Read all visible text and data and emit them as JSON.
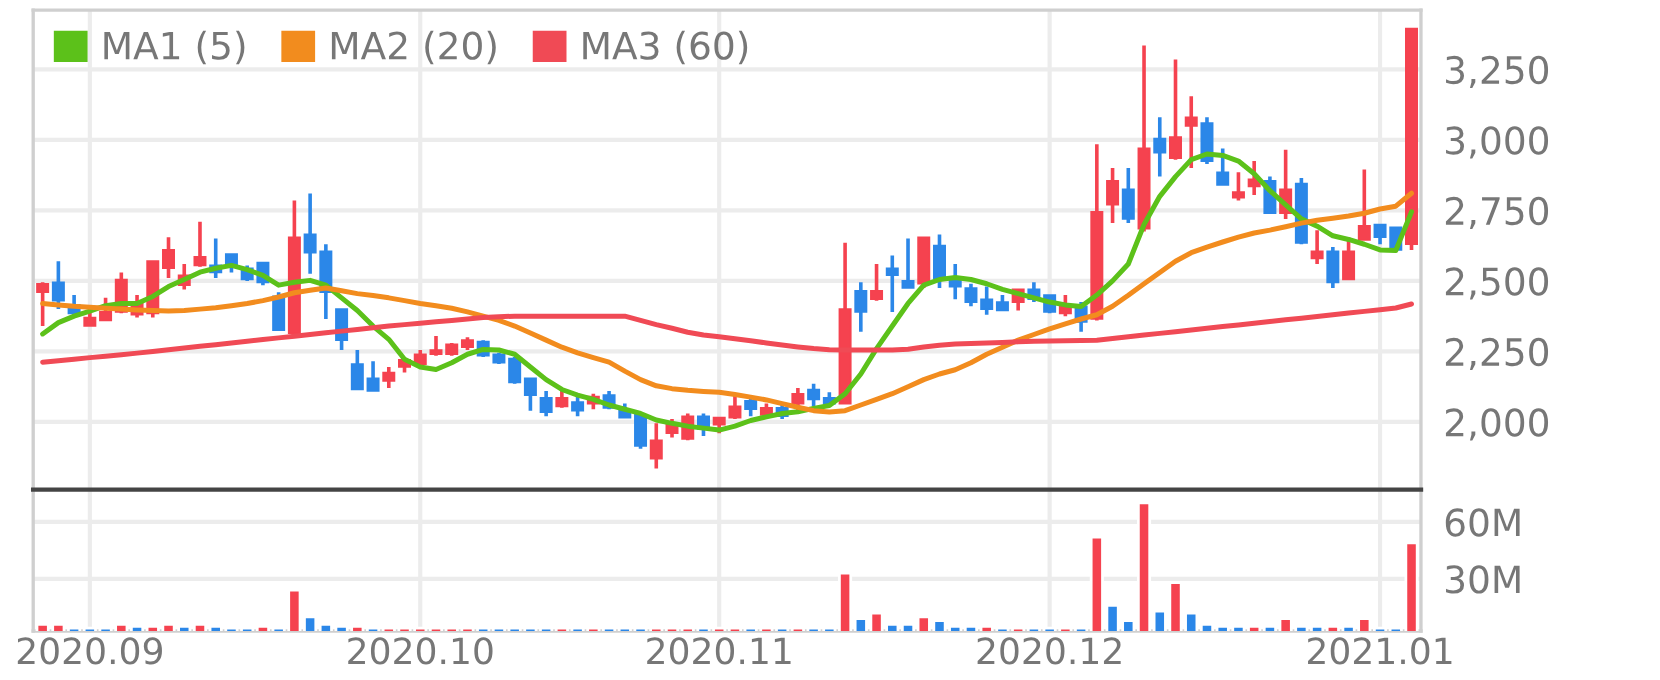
{
  "chart_data": [
    {
      "type": "candlestick",
      "categories": [
        null,
        null,
        null,
        "2020.09",
        null,
        null,
        null,
        null,
        null,
        null,
        null,
        null,
        null,
        null,
        null,
        null,
        null,
        null,
        null,
        null,
        null,
        null,
        null,
        null,
        "2020.10",
        null,
        null,
        null,
        null,
        null,
        null,
        null,
        null,
        null,
        null,
        null,
        null,
        null,
        null,
        null,
        null,
        null,
        null,
        "2020.11",
        null,
        null,
        null,
        null,
        null,
        null,
        null,
        null,
        null,
        null,
        null,
        null,
        null,
        null,
        null,
        null,
        null,
        null,
        null,
        null,
        "2020.12",
        null,
        null,
        null,
        null,
        null,
        null,
        null,
        null,
        null,
        null,
        null,
        null,
        null,
        null,
        null,
        null,
        null,
        null,
        null,
        null,
        "2021.01",
        null,
        null
      ],
      "ohlc": [
        [
          2460,
          2495,
          2340,
          2490
        ],
        [
          2495,
          2570,
          2400,
          2430
        ],
        [
          2415,
          2450,
          2370,
          2385
        ],
        [
          2340,
          2400,
          2340,
          2370
        ],
        [
          2360,
          2440,
          2360,
          2390
        ],
        [
          2390,
          2530,
          2385,
          2505
        ],
        [
          2380,
          2450,
          2370,
          2425
        ],
        [
          2385,
          2570,
          2370,
          2570
        ],
        [
          2545,
          2655,
          2510,
          2610
        ],
        [
          2485,
          2560,
          2470,
          2520
        ],
        [
          2555,
          2710,
          2550,
          2585
        ],
        [
          2555,
          2650,
          2510,
          2530
        ],
        [
          2595,
          2595,
          2530,
          2550
        ],
        [
          2545,
          2555,
          2500,
          2505
        ],
        [
          2565,
          2565,
          2485,
          2495
        ],
        [
          2445,
          2460,
          2325,
          2325
        ],
        [
          2315,
          2785,
          2310,
          2655
        ],
        [
          2665,
          2810,
          2525,
          2600
        ],
        [
          2605,
          2630,
          2365,
          2460
        ],
        [
          2400,
          2400,
          2255,
          2290
        ],
        [
          2205,
          2255,
          2115,
          2115
        ],
        [
          2155,
          2215,
          2110,
          2110
        ],
        [
          2145,
          2195,
          2120,
          2175
        ],
        [
          2195,
          2225,
          2175,
          2220
        ],
        [
          2205,
          2255,
          2195,
          2240
        ],
        [
          2240,
          2305,
          2235,
          2255
        ],
        [
          2240,
          2280,
          2235,
          2275
        ],
        [
          2265,
          2300,
          2255,
          2290
        ],
        [
          2285,
          2290,
          2230,
          2235
        ],
        [
          2240,
          2245,
          2205,
          2210
        ],
        [
          2225,
          2230,
          2135,
          2140
        ],
        [
          2155,
          2155,
          2040,
          2095
        ],
        [
          2085,
          2110,
          2020,
          2035
        ],
        [
          2055,
          2120,
          2050,
          2085
        ],
        [
          2070,
          2090,
          2020,
          2040
        ],
        [
          2065,
          2100,
          2045,
          2090
        ],
        [
          2095,
          2110,
          2045,
          2050
        ],
        [
          2040,
          2065,
          2015,
          2015
        ],
        [
          2025,
          2025,
          1905,
          1915
        ],
        [
          1870,
          1995,
          1835,
          1935
        ],
        [
          1960,
          2010,
          1945,
          1995
        ],
        [
          1940,
          2030,
          1935,
          2020
        ],
        [
          2020,
          2030,
          1950,
          1975
        ],
        [
          1990,
          2015,
          1960,
          2015
        ],
        [
          2015,
          2100,
          2010,
          2055
        ],
        [
          2075,
          2090,
          2020,
          2045
        ],
        [
          2025,
          2065,
          2020,
          2050
        ],
        [
          2050,
          2065,
          2010,
          2020
        ],
        [
          2065,
          2120,
          2040,
          2100
        ],
        [
          2115,
          2135,
          2055,
          2080
        ],
        [
          2085,
          2105,
          2060,
          2065
        ],
        [
          2065,
          2635,
          2065,
          2400
        ],
        [
          2465,
          2495,
          2320,
          2390
        ],
        [
          2435,
          2560,
          2430,
          2465
        ],
        [
          2545,
          2590,
          2390,
          2520
        ],
        [
          2500,
          2650,
          2475,
          2475
        ],
        [
          2490,
          2655,
          2475,
          2655
        ],
        [
          2625,
          2665,
          2475,
          2510
        ],
        [
          2505,
          2560,
          2435,
          2480
        ],
        [
          2475,
          2490,
          2410,
          2425
        ],
        [
          2435,
          2480,
          2380,
          2400
        ],
        [
          2425,
          2450,
          2395,
          2395
        ],
        [
          2425,
          2470,
          2395,
          2470
        ],
        [
          2470,
          2495,
          2425,
          2435
        ],
        [
          2450,
          2450,
          2385,
          2390
        ],
        [
          2385,
          2450,
          2375,
          2410
        ],
        [
          2410,
          2425,
          2320,
          2355
        ],
        [
          2365,
          2985,
          2360,
          2745
        ],
        [
          2770,
          2900,
          2705,
          2855
        ],
        [
          2825,
          2900,
          2705,
          2720
        ],
        [
          2685,
          3335,
          2675,
          2970
        ],
        [
          3005,
          3080,
          2870,
          2955
        ],
        [
          2935,
          3285,
          2930,
          3010
        ],
        [
          3050,
          3155,
          2900,
          3080
        ],
        [
          3060,
          3080,
          2915,
          2925
        ],
        [
          2885,
          2970,
          2840,
          2840
        ],
        [
          2795,
          2885,
          2785,
          2815
        ],
        [
          2835,
          2925,
          2805,
          2860
        ],
        [
          2855,
          2870,
          2740,
          2740
        ],
        [
          2740,
          2965,
          2720,
          2825
        ],
        [
          2845,
          2865,
          2630,
          2635
        ],
        [
          2580,
          2680,
          2560,
          2605
        ],
        [
          2605,
          2620,
          2475,
          2495
        ],
        [
          2505,
          2655,
          2505,
          2605
        ],
        [
          2645,
          2895,
          2645,
          2695
        ],
        [
          2700,
          2700,
          2630,
          2655
        ],
        [
          2690,
          2690,
          2605,
          2610
        ],
        [
          2630,
          3395,
          2610,
          3395
        ]
      ],
      "colors": [
        "#f5424f",
        "#2b87e8",
        "#2b87e8",
        "#f5424f",
        "#f5424f",
        "#f5424f",
        "#f5424f",
        "#f5424f",
        "#f5424f",
        "#f5424f",
        "#f5424f",
        "#2b87e8",
        "#2b87e8",
        "#2b87e8",
        "#2b87e8",
        "#2b87e8",
        "#f5424f",
        "#2b87e8",
        "#2b87e8",
        "#2b87e8",
        "#2b87e8",
        "#2b87e8",
        "#f5424f",
        "#f5424f",
        "#f5424f",
        "#f5424f",
        "#f5424f",
        "#f5424f",
        "#2b87e8",
        "#2b87e8",
        "#2b87e8",
        "#2b87e8",
        "#2b87e8",
        "#f5424f",
        "#2b87e8",
        "#f5424f",
        "#2b87e8",
        "#2b87e8",
        "#2b87e8",
        "#f5424f",
        "#f5424f",
        "#f5424f",
        "#2b87e8",
        "#f5424f",
        "#f5424f",
        "#2b87e8",
        "#f5424f",
        "#2b87e8",
        "#f5424f",
        "#2b87e8",
        "#2b87e8",
        "#f5424f",
        "#2b87e8",
        "#f5424f",
        "#2b87e8",
        "#2b87e8",
        "#f5424f",
        "#2b87e8",
        "#2b87e8",
        "#2b87e8",
        "#2b87e8",
        "#2b87e8",
        "#f5424f",
        "#2b87e8",
        "#2b87e8",
        "#f5424f",
        "#2b87e8",
        "#f5424f",
        "#f5424f",
        "#2b87e8",
        "#f5424f",
        "#2b87e8",
        "#f5424f",
        "#f5424f",
        "#2b87e8",
        "#2b87e8",
        "#f5424f",
        "#f5424f",
        "#2b87e8",
        "#f5424f",
        "#2b87e8",
        "#f5424f",
        "#2b87e8",
        "#f5424f",
        "#f5424f",
        "#2b87e8",
        "#2b87e8",
        "#f5424f"
      ],
      "series": [
        {
          "name": "MA1 (5)",
          "type": "line",
          "color": "#5cc11a",
          "values": [
            2312,
            2352,
            2375,
            2393,
            2412,
            2420,
            2420,
            2445,
            2480,
            2505,
            2531,
            2545,
            2555,
            2540,
            2520,
            2485,
            2495,
            2502,
            2485,
            2440,
            2395,
            2340,
            2293,
            2222,
            2195,
            2186,
            2210,
            2240,
            2257,
            2255,
            2240,
            2195,
            2150,
            2115,
            2095,
            2080,
            2060,
            2045,
            2030,
            2007,
            1995,
            1985,
            1978,
            1971,
            1985,
            2005,
            2018,
            2030,
            2036,
            2048,
            2058,
            2100,
            2170,
            2260,
            2340,
            2420,
            2485,
            2505,
            2512,
            2505,
            2490,
            2470,
            2455,
            2440,
            2425,
            2415,
            2409,
            2450,
            2500,
            2560,
            2700,
            2800,
            2870,
            2930,
            2950,
            2945,
            2925,
            2880,
            2820,
            2770,
            2720,
            2694,
            2660,
            2647,
            2630,
            2610,
            2608,
            2745
          ]
        },
        {
          "name": "MA2 (20)",
          "type": "line",
          "color": "#f28c1e",
          "values": [
            2420,
            2415,
            2410,
            2407,
            2403,
            2400,
            2397,
            2395,
            2393,
            2395,
            2400,
            2405,
            2412,
            2420,
            2430,
            2443,
            2458,
            2467,
            2475,
            2465,
            2455,
            2448,
            2440,
            2430,
            2420,
            2412,
            2403,
            2390,
            2375,
            2360,
            2340,
            2315,
            2290,
            2265,
            2245,
            2228,
            2212,
            2180,
            2150,
            2128,
            2118,
            2112,
            2108,
            2105,
            2097,
            2088,
            2078,
            2065,
            2052,
            2040,
            2035,
            2040,
            2060,
            2080,
            2100,
            2125,
            2150,
            2170,
            2185,
            2210,
            2240,
            2265,
            2290,
            2310,
            2330,
            2348,
            2365,
            2380,
            2410,
            2449,
            2490,
            2530,
            2570,
            2600,
            2620,
            2638,
            2655,
            2670,
            2680,
            2692,
            2705,
            2715,
            2722,
            2730,
            2740,
            2755,
            2765,
            2811
          ]
        },
        {
          "name": "MA3 (60)",
          "type": "line",
          "color": "#f04a55",
          "values": [
            2212,
            2217,
            2222,
            2228,
            2233,
            2238,
            2244,
            2250,
            2256,
            2262,
            2268,
            2274,
            2280,
            2286,
            2292,
            2298,
            2304,
            2310,
            2316,
            2322,
            2328,
            2334,
            2340,
            2345,
            2350,
            2355,
            2360,
            2365,
            2370,
            2373,
            2375,
            2375,
            2375,
            2375,
            2375,
            2375,
            2375,
            2375,
            2360,
            2345,
            2332,
            2318,
            2308,
            2302,
            2295,
            2288,
            2280,
            2273,
            2266,
            2260,
            2256,
            2255,
            2255,
            2255,
            2255,
            2258,
            2266,
            2272,
            2276,
            2278,
            2280,
            2282,
            2284,
            2286,
            2287,
            2288,
            2289,
            2290,
            2296,
            2302,
            2308,
            2314,
            2320,
            2326,
            2332,
            2338,
            2344,
            2350,
            2356,
            2362,
            2368,
            2374,
            2380,
            2386,
            2392,
            2398,
            2404,
            2418
          ]
        }
      ],
      "ylim": [
        1760,
        3460
      ],
      "yticks": [
        {
          "value": 2000,
          "label": "2,000"
        },
        {
          "value": 2250,
          "label": "2,250"
        },
        {
          "value": 2500,
          "label": "2,500"
        },
        {
          "value": 2750,
          "label": "2,750"
        },
        {
          "value": 3000,
          "label": "3,000"
        },
        {
          "value": 3250,
          "label": "3,250"
        }
      ],
      "tick_labels": "y",
      "grid": true,
      "legend": "top left"
    },
    {
      "type": "bar",
      "categories": [
        null,
        null,
        null,
        "2020.09",
        null,
        null,
        null,
        null,
        null,
        null,
        null,
        null,
        null,
        null,
        null,
        null,
        null,
        null,
        null,
        null,
        null,
        null,
        null,
        null,
        "2020.10",
        null,
        null,
        null,
        null,
        null,
        null,
        null,
        null,
        null,
        null,
        null,
        null,
        null,
        null,
        null,
        null,
        null,
        null,
        "2020.11",
        null,
        null,
        null,
        null,
        null,
        null,
        null,
        null,
        null,
        null,
        null,
        null,
        null,
        null,
        null,
        null,
        null,
        null,
        null,
        null,
        "2020.12",
        null,
        null,
        null,
        null,
        null,
        null,
        null,
        null,
        null,
        null,
        null,
        null,
        null,
        null,
        null,
        null,
        null,
        null,
        null,
        null,
        "2021.01",
        null,
        null
      ],
      "values": [
        6,
        6,
        4,
        4,
        4,
        6,
        5,
        5,
        6,
        5,
        6,
        5,
        4,
        4,
        5,
        4,
        24,
        10,
        6,
        5,
        5,
        4,
        4,
        4,
        4,
        4,
        4,
        4,
        4,
        4,
        4,
        4,
        4,
        4,
        4,
        4,
        4,
        4,
        4,
        4,
        4,
        4,
        4,
        4,
        4,
        4,
        4,
        4,
        4,
        4,
        4,
        33,
        9,
        12,
        6,
        6,
        10,
        8,
        5,
        5,
        5,
        4,
        4,
        4,
        4,
        4,
        4,
        52,
        16,
        8,
        70,
        13,
        28,
        12,
        6,
        5,
        5,
        5,
        5,
        9,
        5,
        5,
        5,
        5,
        9,
        4,
        4,
        49
      ],
      "colors": [
        "#f5424f",
        "#f5424f",
        "#2b87e8",
        "#2b87e8",
        "#2b87e8",
        "#f5424f",
        "#2b87e8",
        "#f5424f",
        "#f5424f",
        "#2b87e8",
        "#f5424f",
        "#2b87e8",
        "#2b87e8",
        "#2b87e8",
        "#f5424f",
        "#2b87e8",
        "#f5424f",
        "#2b87e8",
        "#2b87e8",
        "#2b87e8",
        "#f5424f",
        "#2b87e8",
        "#f5424f",
        "#f5424f",
        "#f5424f",
        "#f5424f",
        "#f5424f",
        "#f5424f",
        "#2b87e8",
        "#2b87e8",
        "#2b87e8",
        "#2b87e8",
        "#2b87e8",
        "#f5424f",
        "#2b87e8",
        "#f5424f",
        "#2b87e8",
        "#2b87e8",
        "#2b87e8",
        "#f5424f",
        "#f5424f",
        "#f5424f",
        "#2b87e8",
        "#f5424f",
        "#f5424f",
        "#2b87e8",
        "#f5424f",
        "#2b87e8",
        "#f5424f",
        "#2b87e8",
        "#2b87e8",
        "#f5424f",
        "#2b87e8",
        "#f5424f",
        "#2b87e8",
        "#2b87e8",
        "#f5424f",
        "#2b87e8",
        "#2b87e8",
        "#2b87e8",
        "#f5424f",
        "#2b87e8",
        "#f5424f",
        "#2b87e8",
        "#2b87e8",
        "#f5424f",
        "#2b87e8",
        "#f5424f",
        "#2b87e8",
        "#2b87e8",
        "#f5424f",
        "#2b87e8",
        "#f5424f",
        "#2b87e8",
        "#2b87e8",
        "#2b87e8",
        "#2b87e8",
        "#f5424f",
        "#2b87e8",
        "#f5424f",
        "#2b87e8",
        "#2b87e8",
        "#f5424f",
        "#2b87e8",
        "#f5424f",
        "#2b87e8",
        "#2b87e8",
        "#f5424f"
      ],
      "ylim": [
        2.5,
        77
      ],
      "yticks": [
        {
          "value": 30,
          "label": "30M"
        },
        {
          "value": 60,
          "label": "60M"
        }
      ],
      "grid": true
    }
  ]
}
